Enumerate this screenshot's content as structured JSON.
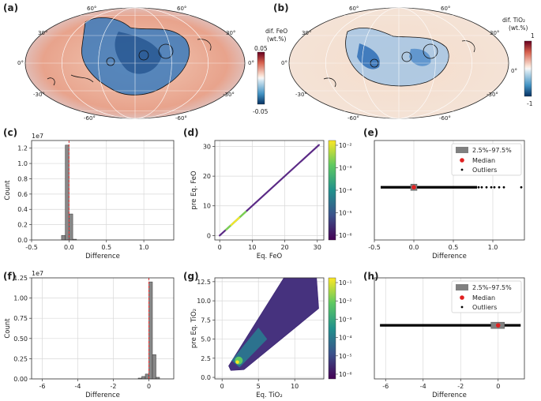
{
  "panels": {
    "a": {
      "label": "(a)",
      "cbar_title_1": "dif. FeO",
      "cbar_title_2": "(wt.%)",
      "cbar_max": "0.05",
      "cbar_min": "-0.05"
    },
    "b": {
      "label": "(b)",
      "cbar_title_1": "dif. TiO₂",
      "cbar_title_2": "(wt.%)",
      "cbar_max": "1",
      "cbar_min": "-1"
    },
    "c": {
      "label": "(c)"
    },
    "d": {
      "label": "(d)"
    },
    "e": {
      "label": "(e)"
    },
    "f": {
      "label": "(f)"
    },
    "g": {
      "label": "(g)"
    },
    "h": {
      "label": "(h)"
    }
  },
  "map_grid_labels": {
    "lat_left": [
      "60°",
      "30°",
      "0°",
      "-30°",
      "-60°"
    ],
    "lat_right": [
      "60°",
      "30°",
      "0°",
      "-30°",
      "-60°"
    ]
  },
  "colors": {
    "hist_bar": "#888888",
    "median_line": "#e03030",
    "box_fill": "#808080",
    "median_dot": "#e02020",
    "outlier": "#000000",
    "diverging_pos": "#b2182b",
    "diverging_neg": "#2166ac",
    "viridis_low": "#440154",
    "viridis_high": "#fde725"
  },
  "chart_data": [
    {
      "id": "c",
      "type": "bar",
      "title": "",
      "xlabel": "Difference",
      "ylabel": "Count",
      "scale_label": "1e7",
      "xlim": [
        -0.5,
        1.4
      ],
      "ylim": [
        0,
        1.3
      ],
      "xticks": [
        -0.5,
        0.0,
        0.5,
        1.0
      ],
      "xtick_labels": [
        "-0.5",
        "0.0",
        "0.5",
        "1.0"
      ],
      "yticks": [
        0.0,
        0.2,
        0.4,
        0.6,
        0.8,
        1.0,
        1.2
      ],
      "ytick_labels": [
        "0.0",
        "0.2",
        "0.4",
        "0.6",
        "0.8",
        "1.0",
        "1.2"
      ],
      "bins": [
        [
          -0.1,
          -0.05,
          0.06
        ],
        [
          -0.05,
          0.0,
          1.24
        ],
        [
          0.0,
          0.05,
          0.34
        ],
        [
          0.05,
          0.1,
          0.01
        ]
      ],
      "median": 0.0
    },
    {
      "id": "d",
      "type": "scatter",
      "xlabel": "Eq. FeO",
      "ylabel": "pre Eq. FeO",
      "xlim": [
        -1.5,
        32
      ],
      "ylim": [
        -1.5,
        32
      ],
      "xticks": [
        0,
        10,
        20,
        30
      ],
      "xtick_labels": [
        "0",
        "10",
        "20",
        "30"
      ],
      "yticks": [
        0,
        10,
        20,
        30
      ],
      "ytick_labels": [
        "0",
        "10",
        "20",
        "30"
      ],
      "colorbar_ticks": [
        "10⁻²",
        "10⁻³",
        "10⁻⁴",
        "10⁻⁵",
        "10⁻⁶"
      ],
      "trend": {
        "x": [
          0,
          30.5
        ],
        "y": [
          0,
          30.5
        ]
      }
    },
    {
      "id": "e",
      "type": "box",
      "xlabel": "Difference",
      "xlim": [
        -0.5,
        1.4
      ],
      "xticks": [
        -0.5,
        0.0,
        0.5,
        1.0
      ],
      "xtick_labels": [
        "-0.5",
        "0.0",
        "0.5",
        "1.0"
      ],
      "box": [
        -0.02,
        0.02
      ],
      "median": 0.0,
      "outlier_range": [
        -0.42,
        0.8
      ],
      "outlier_extra": [
        0.82,
        0.86,
        0.92,
        0.98,
        1.02,
        1.08,
        1.14,
        1.36
      ],
      "legend": [
        "2.5%–97.5%",
        "Median",
        "Outliers"
      ]
    },
    {
      "id": "f",
      "type": "bar",
      "xlabel": "Difference",
      "ylabel": "Count",
      "scale_label": "1e7",
      "xlim": [
        -6.6,
        1.4
      ],
      "ylim": [
        0,
        1.25
      ],
      "xticks": [
        -6,
        -4,
        -2,
        0
      ],
      "xtick_labels": [
        "-6",
        "-4",
        "-2",
        "0"
      ],
      "yticks": [
        0.0,
        0.25,
        0.5,
        0.75,
        1.0,
        1.25
      ],
      "ytick_labels": [
        "0.00",
        "0.25",
        "0.50",
        "0.75",
        "1.00",
        "1.25"
      ],
      "bins": [
        [
          -0.6,
          -0.4,
          0.01
        ],
        [
          -0.4,
          -0.2,
          0.03
        ],
        [
          -0.2,
          0.0,
          0.06
        ],
        [
          0.0,
          0.2,
          1.2
        ],
        [
          0.2,
          0.4,
          0.3
        ],
        [
          0.4,
          0.6,
          0.02
        ]
      ],
      "median": 0.0
    },
    {
      "id": "g",
      "type": "scatter",
      "xlabel": "Eq. TiO₂",
      "ylabel": "pre Eq. TiO₂",
      "xlim": [
        -1,
        14
      ],
      "ylim": [
        -0.2,
        13
      ],
      "xticks": [
        0,
        5,
        10
      ],
      "xtick_labels": [
        "0",
        "5",
        "10"
      ],
      "yticks": [
        0.0,
        2.5,
        5.0,
        7.5,
        10.0,
        12.5
      ],
      "ytick_labels": [
        "0.0",
        "2.5",
        "5.0",
        "7.5",
        "10.0",
        "12.5"
      ],
      "colorbar_ticks": [
        "10⁻¹",
        "10⁻²",
        "10⁻³",
        "10⁻⁴",
        "10⁻⁵",
        "10⁻⁶"
      ],
      "trend": {
        "x": [
          1.2,
          13
        ],
        "y": [
          1.2,
          13
        ]
      }
    },
    {
      "id": "h",
      "type": "box",
      "xlabel": "Difference",
      "xlim": [
        -6.6,
        1.4
      ],
      "xticks": [
        -6,
        -4,
        -2,
        0
      ],
      "xtick_labels": [
        "-6",
        "-4",
        "-2",
        "0"
      ],
      "box": [
        -0.3,
        0.25
      ],
      "median": 0.0,
      "outlier_range": [
        -6.3,
        1.2
      ],
      "outlier_extra": [],
      "legend": [
        "2.5%–97.5%",
        "Median",
        "Outliers"
      ]
    }
  ]
}
